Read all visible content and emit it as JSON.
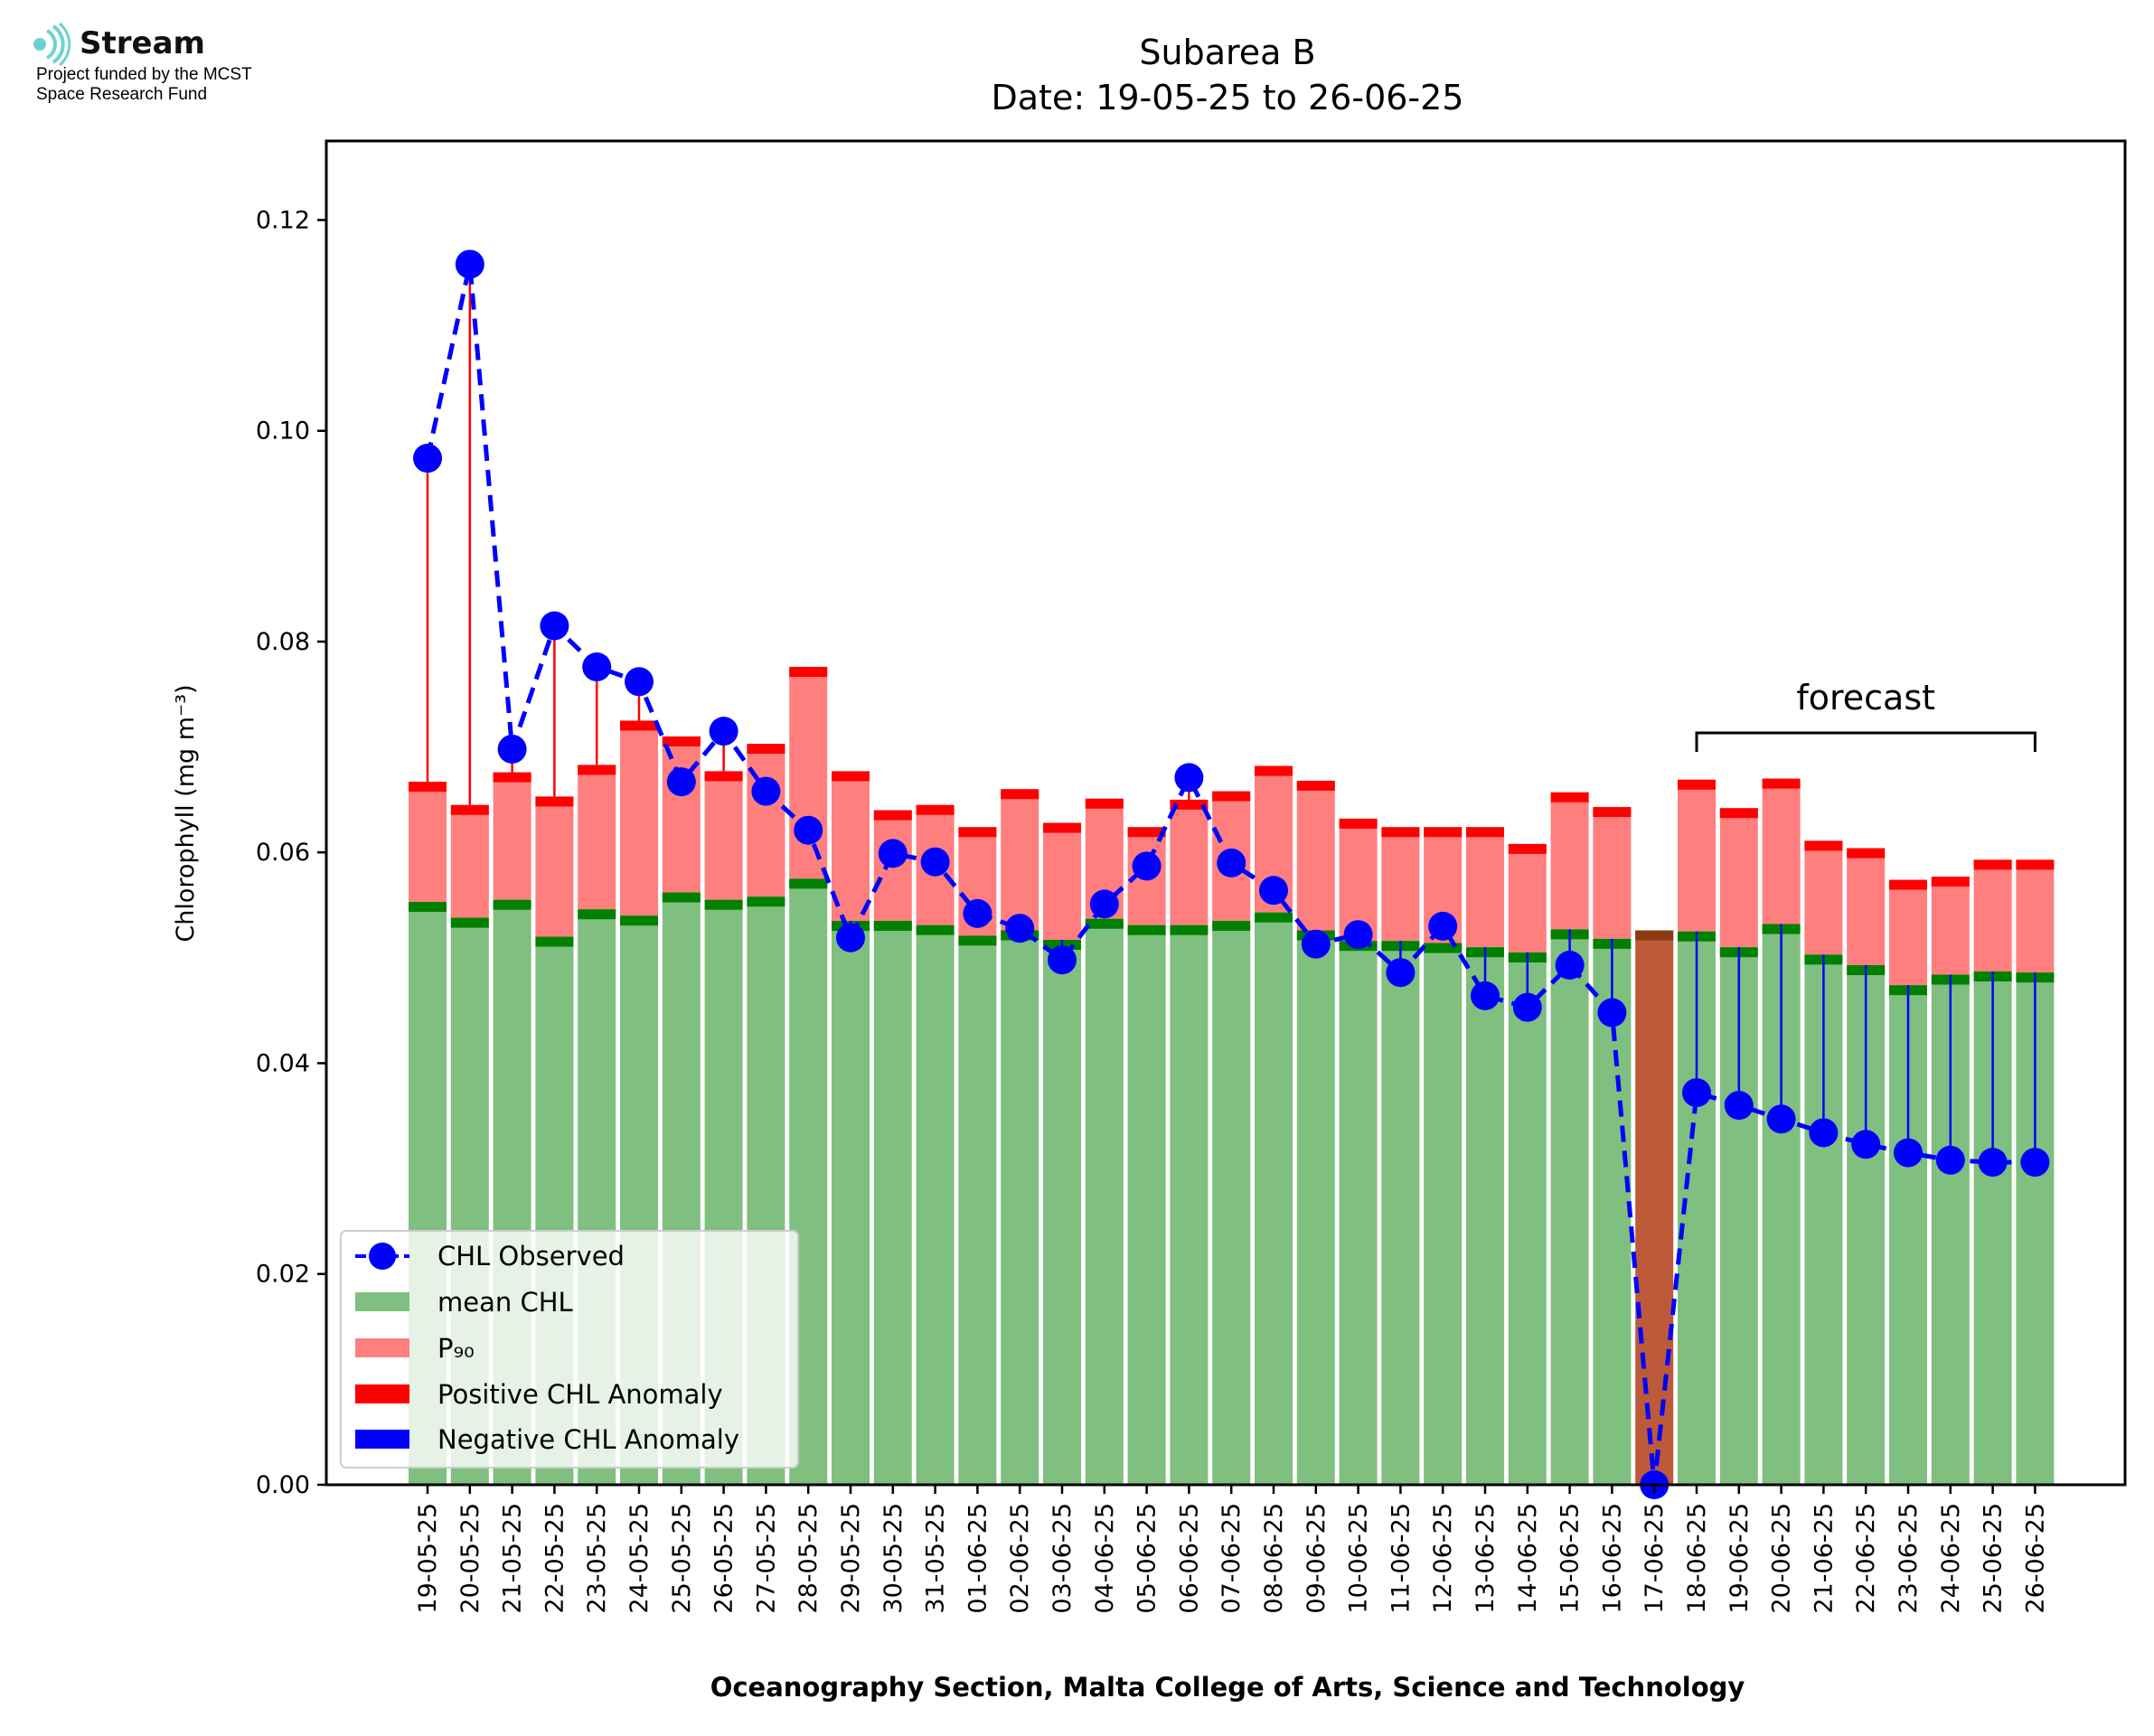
{
  "logo": {
    "name": "Stream",
    "line1": "Project funded by the MCST",
    "line2": "Space Research Fund"
  },
  "chart_data": {
    "type": "bar",
    "title": "Subarea B",
    "subtitle": "Date: 19-05-25 to 26-06-25",
    "xlabel": "Oceanography Section, Malta College of Arts, Science and Technology",
    "ylabel": "Chlorophyll (mg m⁻³)",
    "ylim": [
      0,
      0.1275
    ],
    "yticks": [
      "0.00",
      "0.02",
      "0.04",
      "0.06",
      "0.08",
      "0.10",
      "0.12"
    ],
    "forecast_label": "forecast",
    "forecast_range": [
      "18-06-25",
      "26-06-25"
    ],
    "categories": [
      "19-05-25",
      "20-05-25",
      "21-05-25",
      "22-05-25",
      "23-05-25",
      "24-05-25",
      "25-05-25",
      "26-05-25",
      "27-05-25",
      "28-05-25",
      "29-05-25",
      "30-05-25",
      "31-05-25",
      "01-06-25",
      "02-06-25",
      "03-06-25",
      "04-06-25",
      "05-06-25",
      "06-06-25",
      "07-06-25",
      "08-06-25",
      "09-06-25",
      "10-06-25",
      "11-06-25",
      "12-06-25",
      "13-06-25",
      "14-06-25",
      "15-06-25",
      "16-06-25",
      "17-06-25",
      "18-06-25",
      "19-06-25",
      "20-06-25",
      "21-06-25",
      "22-06-25",
      "23-06-25",
      "24-06-25",
      "25-06-25",
      "26-06-25"
    ],
    "mean_chl": [
      0.0553,
      0.0538,
      0.0555,
      0.052,
      0.0546,
      0.054,
      0.0562,
      0.0555,
      0.0558,
      0.0575,
      0.0535,
      0.0535,
      0.0531,
      0.0521,
      0.0526,
      0.0517,
      0.0537,
      0.0531,
      0.0531,
      0.0535,
      0.0543,
      0.0526,
      0.0516,
      0.0516,
      0.0514,
      0.051,
      0.0505,
      0.0527,
      0.0518,
      0.0526,
      0.0525,
      0.051,
      0.0532,
      0.0503,
      0.0493,
      0.0474,
      0.0484,
      0.0487,
      0.0486
    ],
    "p90": [
      0.0667,
      0.0645,
      0.0676,
      0.0653,
      0.0683,
      0.0725,
      0.071,
      0.0677,
      0.0703,
      0.0776,
      0.0677,
      0.064,
      0.0645,
      0.0624,
      0.066,
      0.0628,
      0.0651,
      0.0624,
      0.065,
      0.0658,
      0.0682,
      0.0668,
      0.0632,
      0.0624,
      0.0624,
      0.0624,
      0.0608,
      0.0657,
      0.0643,
      0.0526,
      0.0669,
      0.0642,
      0.067,
      0.0611,
      0.0604,
      0.0574,
      0.0577,
      0.0593,
      0.0593
    ],
    "chl_observed": [
      0.0974,
      0.1158,
      0.0698,
      0.0815,
      0.0776,
      0.0762,
      0.0667,
      0.0715,
      0.0658,
      0.0621,
      0.0519,
      0.0599,
      0.0591,
      0.0542,
      0.0528,
      0.0498,
      0.0551,
      0.0587,
      0.0671,
      0.059,
      0.0564,
      0.0513,
      0.0522,
      0.0486,
      0.053,
      0.0464,
      0.0453,
      0.0493,
      0.0448,
      0.0,
      0.0372,
      0.036,
      0.0347,
      0.0334,
      0.0323,
      0.0315,
      0.0308,
      0.0306,
      0.0306
    ],
    "legend": [
      "CHL Observed",
      "mean CHL",
      "P₉₀",
      "Positive CHL Anomaly",
      "Negative CHL Anomaly"
    ],
    "legend_position": "lower-left",
    "colors": {
      "observed": "#0000ff",
      "mean": "#7fbf7f",
      "mean_cap": "#008000",
      "p90": "#ff7f7f",
      "p90_cap": "#ff0000",
      "missing": "#bc5a3a",
      "missing_cap": "#8b3a0f",
      "positive": "#ff0000",
      "negative": "#0000ff"
    },
    "grid": false
  }
}
